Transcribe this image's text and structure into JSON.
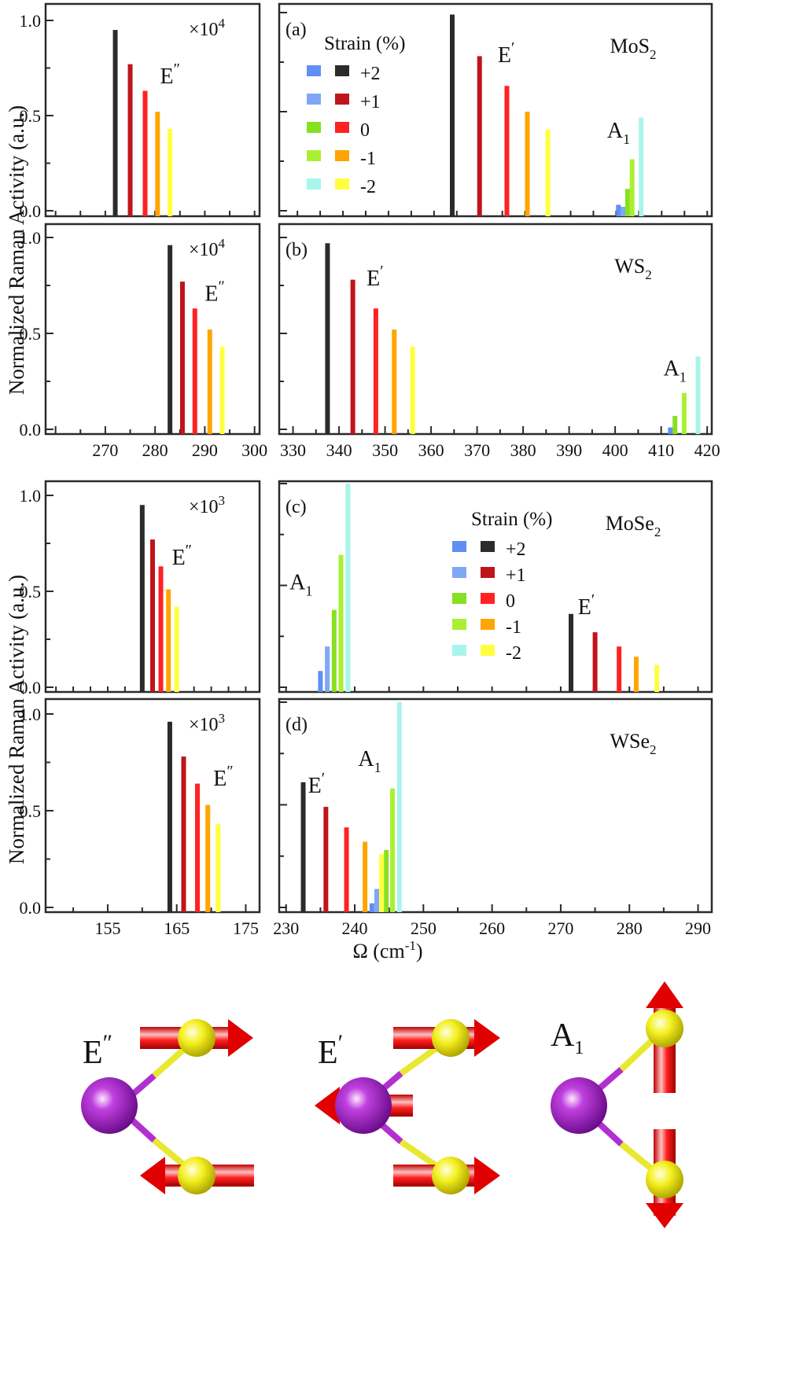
{
  "figure": {
    "ylabel": "Normalized Raman Activity (a.u.)",
    "xlabel": "Ω (cm",
    "xlabel_sup": "-1",
    "xlabel_end": ")"
  },
  "colors": {
    "black": "#2b2b2b",
    "darkred": "#c0141b",
    "red": "#ff2222",
    "orange": "#ffa500",
    "yellow": "#ffff40",
    "blue": "#5f8ff5",
    "lightblue": "#7fa7f5",
    "green": "#88e022",
    "lightgreen": "#aaf032",
    "cyan": "#a8f5ec"
  },
  "legend": {
    "title": "Strain (%)",
    "entries": [
      "+2",
      "+1",
      "0",
      "-1",
      "-2"
    ]
  },
  "chart_data": [
    {
      "id": "L1",
      "type": "bar",
      "material": "MoS2",
      "xlim": [
        258,
        301
      ],
      "ylim": [
        0,
        1
      ],
      "yticks": [
        "0.0",
        "0.5",
        "1.0"
      ],
      "xticks": [],
      "scale": "×10",
      "scale_sup": "4",
      "labels": [
        {
          "text": "E",
          "prime": "″",
          "x": 281,
          "y": 0.67
        }
      ],
      "bars": [
        {
          "x": 272.0,
          "y": 0.95,
          "c": "black"
        },
        {
          "x": 275.0,
          "y": 0.77,
          "c": "darkred"
        },
        {
          "x": 278.0,
          "y": 0.63,
          "c": "red"
        },
        {
          "x": 280.5,
          "y": 0.52,
          "c": "orange"
        },
        {
          "x": 283.0,
          "y": 0.43,
          "c": "yellow"
        }
      ]
    },
    {
      "id": "R1",
      "type": "bar",
      "material": "MoS2",
      "panel": "(a)",
      "title": "MoS",
      "title_sub": "2",
      "xlim": [
        326,
        421
      ],
      "ylim": [
        0,
        1
      ],
      "xticks": [],
      "labels": [
        {
          "text": "E",
          "prime": "′",
          "x": 374,
          "y": 0.75
        },
        {
          "text": "A",
          "sub": "1",
          "x": 398,
          "y": 0.37
        }
      ],
      "bars": [
        {
          "x": 364.0,
          "y": 0.99,
          "c": "black"
        },
        {
          "x": 370.0,
          "y": 0.78,
          "c": "darkred"
        },
        {
          "x": 376.0,
          "y": 0.63,
          "c": "red"
        },
        {
          "x": 380.5,
          "y": 0.5,
          "c": "orange"
        },
        {
          "x": 385.0,
          "y": 0.41,
          "c": "yellow"
        },
        {
          "x": 400.5,
          "y": 0.03,
          "c": "blue"
        },
        {
          "x": 401.5,
          "y": 0.02,
          "c": "lightblue"
        },
        {
          "x": 402.5,
          "y": 0.11,
          "c": "green"
        },
        {
          "x": 403.5,
          "y": 0.26,
          "c": "lightgreen"
        },
        {
          "x": 405.5,
          "y": 0.47,
          "c": "cyan"
        }
      ]
    },
    {
      "id": "L2",
      "type": "bar",
      "material": "WS2",
      "xlim": [
        258,
        301
      ],
      "ylim": [
        0,
        1
      ],
      "yticks": [
        "0.0",
        "0.5",
        "1.0"
      ],
      "xticks": [
        270,
        280,
        290,
        300
      ],
      "scale": "×10",
      "scale_sup": "4",
      "labels": [
        {
          "text": "E",
          "prime": "″",
          "x": 290,
          "y": 0.67
        }
      ],
      "bars": [
        {
          "x": 283.0,
          "y": 0.96,
          "c": "black"
        },
        {
          "x": 285.5,
          "y": 0.77,
          "c": "darkred"
        },
        {
          "x": 288.0,
          "y": 0.63,
          "c": "red"
        },
        {
          "x": 291.0,
          "y": 0.52,
          "c": "orange"
        },
        {
          "x": 293.5,
          "y": 0.43,
          "c": "yellow"
        }
      ]
    },
    {
      "id": "R2",
      "type": "bar",
      "material": "WS2",
      "panel": "(b)",
      "title": "WS",
      "title_sub": "2",
      "xlim": [
        327,
        421
      ],
      "ylim": [
        0,
        1
      ],
      "xticks": [
        330,
        340,
        350,
        360,
        370,
        380,
        390,
        400,
        410,
        420
      ],
      "labels": [
        {
          "text": "E",
          "prime": "′",
          "x": 346,
          "y": 0.75
        },
        {
          "text": "A",
          "sub": "1",
          "x": 410.5,
          "y": 0.28
        }
      ],
      "bars": [
        {
          "x": 337.5,
          "y": 0.97,
          "c": "black"
        },
        {
          "x": 343.0,
          "y": 0.78,
          "c": "darkred"
        },
        {
          "x": 348.0,
          "y": 0.63,
          "c": "red"
        },
        {
          "x": 352.0,
          "y": 0.52,
          "c": "orange"
        },
        {
          "x": 356.0,
          "y": 0.43,
          "c": "yellow"
        },
        {
          "x": 412.0,
          "y": 0.01,
          "c": "blue"
        },
        {
          "x": 413.0,
          "y": 0.07,
          "c": "green"
        },
        {
          "x": 415.0,
          "y": 0.19,
          "c": "lightgreen"
        },
        {
          "x": 418.0,
          "y": 0.38,
          "c": "cyan"
        }
      ]
    },
    {
      "id": "L3",
      "type": "bar",
      "material": "MoSe2",
      "xlim": [
        146,
        177
      ],
      "ylim": [
        0,
        1
      ],
      "yticks": [
        "0.0",
        "0.5",
        "1.0"
      ],
      "xticks": [],
      "scale": "×10",
      "scale_sup": "3",
      "labels": [
        {
          "text": "E",
          "prime": "″",
          "x": 164.3,
          "y": 0.64
        }
      ],
      "bars": [
        {
          "x": 160.0,
          "y": 0.95,
          "c": "black"
        },
        {
          "x": 161.5,
          "y": 0.77,
          "c": "darkred"
        },
        {
          "x": 162.7,
          "y": 0.63,
          "c": "red"
        },
        {
          "x": 163.8,
          "y": 0.51,
          "c": "orange"
        },
        {
          "x": 165.0,
          "y": 0.42,
          "c": "yellow"
        }
      ]
    },
    {
      "id": "R3",
      "type": "bar",
      "material": "MoSe2",
      "panel": "(c)",
      "title": "MoSe",
      "title_sub": "2",
      "xlim": [
        229,
        292
      ],
      "ylim": [
        0,
        1
      ],
      "xticks": [],
      "legend": true,
      "labels": [
        {
          "text": "E",
          "prime": "′",
          "x": 272.5,
          "y": 0.36
        },
        {
          "text": "A",
          "sub": "1",
          "x": 230.5,
          "y": 0.48
        }
      ],
      "bars": [
        {
          "x": 235.0,
          "y": 0.08,
          "c": "blue"
        },
        {
          "x": 236.0,
          "y": 0.2,
          "c": "lightblue"
        },
        {
          "x": 237.0,
          "y": 0.38,
          "c": "green"
        },
        {
          "x": 238.0,
          "y": 0.65,
          "c": "lightgreen"
        },
        {
          "x": 239.0,
          "y": 1.0,
          "c": "cyan"
        },
        {
          "x": 271.5,
          "y": 0.36,
          "c": "black"
        },
        {
          "x": 275.0,
          "y": 0.27,
          "c": "darkred"
        },
        {
          "x": 278.5,
          "y": 0.2,
          "c": "red"
        },
        {
          "x": 281.0,
          "y": 0.15,
          "c": "orange"
        },
        {
          "x": 284.0,
          "y": 0.11,
          "c": "yellow"
        }
      ]
    },
    {
      "id": "L4",
      "type": "bar",
      "material": "WSe2",
      "xlim": [
        146,
        177
      ],
      "ylim": [
        0,
        1
      ],
      "yticks": [
        "0.0",
        "0.5",
        "1.0"
      ],
      "xticks": [
        155,
        165,
        175
      ],
      "scale": "×10",
      "scale_sup": "3",
      "labels": [
        {
          "text": "E",
          "prime": "″",
          "x": 170.3,
          "y": 0.63
        }
      ],
      "bars": [
        {
          "x": 164.0,
          "y": 0.96,
          "c": "black"
        },
        {
          "x": 166.0,
          "y": 0.78,
          "c": "darkred"
        },
        {
          "x": 168.0,
          "y": 0.64,
          "c": "red"
        },
        {
          "x": 169.5,
          "y": 0.53,
          "c": "orange"
        },
        {
          "x": 171.0,
          "y": 0.43,
          "c": "yellow"
        }
      ]
    },
    {
      "id": "R4",
      "type": "bar",
      "material": "WSe2",
      "panel": "(d)",
      "title": "WSe",
      "title_sub": "2",
      "xlim": [
        229,
        292
      ],
      "ylim": [
        0,
        1
      ],
      "xticks": [
        230,
        240,
        250,
        260,
        270,
        280,
        290
      ],
      "labels": [
        {
          "text": "E",
          "prime": "′",
          "x": 233.2,
          "y": 0.56
        },
        {
          "text": "A",
          "sub": "1",
          "x": 240.5,
          "y": 0.69
        }
      ],
      "bars": [
        {
          "x": 232.5,
          "y": 0.61,
          "c": "black"
        },
        {
          "x": 235.8,
          "y": 0.49,
          "c": "darkred"
        },
        {
          "x": 238.8,
          "y": 0.39,
          "c": "red"
        },
        {
          "x": 241.5,
          "y": 0.32,
          "c": "orange"
        },
        {
          "x": 242.5,
          "y": 0.02,
          "c": "blue"
        },
        {
          "x": 243.2,
          "y": 0.09,
          "c": "lightblue"
        },
        {
          "x": 243.9,
          "y": 0.26,
          "c": "yellow"
        },
        {
          "x": 244.6,
          "y": 0.28,
          "c": "green"
        },
        {
          "x": 245.5,
          "y": 0.58,
          "c": "lightgreen"
        },
        {
          "x": 246.5,
          "y": 1.0,
          "c": "cyan"
        }
      ]
    }
  ],
  "modes": [
    {
      "name": "E",
      "mark": "″"
    },
    {
      "name": "E",
      "mark": "′"
    },
    {
      "name": "A",
      "sub": "1"
    }
  ]
}
